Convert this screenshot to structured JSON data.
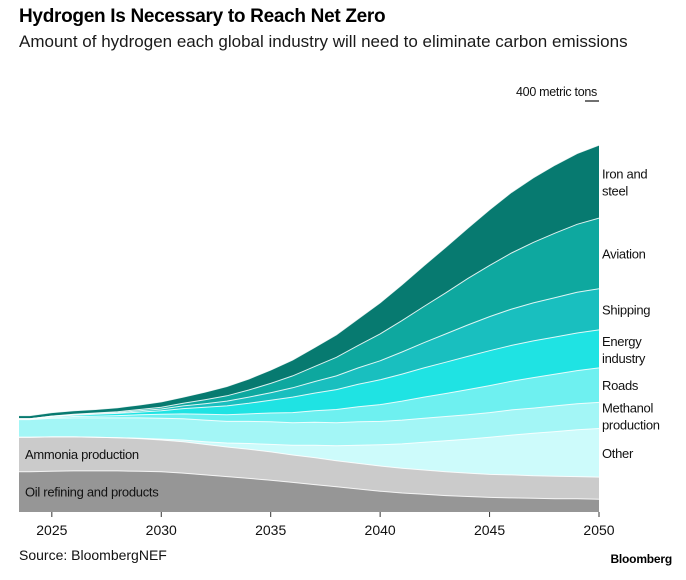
{
  "title": "Hydrogen Is Necessary to Reach Net Zero",
  "subtitle": "Amount of hydrogen each global industry will need to eliminate carbon emissions",
  "source": "Source: BloombergNEF",
  "brand": "Bloomberg",
  "chart_data": {
    "type": "area",
    "stacked": true,
    "title": "Hydrogen Is Necessary to Reach Net Zero",
    "subtitle": "Amount of hydrogen each global industry will need to eliminate carbon emissions",
    "scale_label": "400 metric tons",
    "xlim": [
      2023.5,
      2050
    ],
    "ylim": [
      0,
      1000
    ],
    "x_ticks": [
      2025,
      2030,
      2035,
      2040,
      2045,
      2050
    ],
    "x": [
      2023.5,
      2024,
      2025,
      2026,
      2027,
      2028,
      2029,
      2030,
      2031,
      2032,
      2033,
      2034,
      2035,
      2036,
      2037,
      2038,
      2039,
      2040,
      2041,
      2042,
      2043,
      2044,
      2045,
      2046,
      2047,
      2048,
      2049,
      2050
    ],
    "series": [
      {
        "name": "Oil refining and products",
        "color": "#969696",
        "values": [
          91,
          91,
          92,
          93,
          93,
          93,
          92,
          91,
          88,
          84,
          80,
          76,
          72,
          67,
          62,
          57,
          52,
          47,
          43,
          40,
          37,
          35,
          33,
          32,
          31,
          30,
          30,
          29
        ]
      },
      {
        "name": "Ammonia production",
        "color": "#cbcbcb",
        "values": [
          78,
          78,
          78,
          77,
          76,
          75,
          74,
          72,
          71,
          69,
          67,
          66,
          64,
          62,
          61,
          59,
          58,
          57,
          56,
          55,
          54,
          53,
          52,
          52,
          51,
          51,
          50,
          50
        ]
      },
      {
        "name": "Other",
        "color": "#cdfbfb",
        "values": [
          0,
          0,
          0,
          0,
          0,
          0,
          1,
          2,
          4,
          6,
          9,
          13,
          17,
          22,
          28,
          34,
          41,
          48,
          55,
          63,
          70,
          77,
          84,
          90,
          96,
          101,
          106,
          110
        ]
      },
      {
        "name": "Methanol production",
        "color": "#a3f6f6",
        "values": [
          40,
          40,
          42,
          43,
          44,
          45,
          46,
          47,
          48,
          49,
          49,
          50,
          51,
          51,
          52,
          52,
          53,
          53,
          54,
          54,
          55,
          55,
          56,
          57,
          57,
          58,
          59,
          59
        ]
      },
      {
        "name": "Roads",
        "color": "#6ef0f0",
        "values": [
          1,
          1,
          2,
          3,
          4,
          5,
          7,
          9,
          11,
          13,
          15,
          17,
          20,
          23,
          26,
          30,
          34,
          38,
          43,
          48,
          52,
          57,
          61,
          65,
          69,
          72,
          75,
          78
        ]
      },
      {
        "name": "Energy industry",
        "color": "#1fe3e3",
        "values": [
          1,
          1,
          2,
          3,
          4,
          5,
          6,
          8,
          12,
          16,
          20,
          24,
          29,
          35,
          40,
          45,
          51,
          56,
          61,
          66,
          71,
          75,
          79,
          81,
          83,
          84,
          85,
          86
        ]
      },
      {
        "name": "Shipping",
        "color": "#19bfbf",
        "values": [
          0,
          0,
          1,
          1,
          2,
          2,
          3,
          4,
          6,
          8,
          11,
          14,
          17,
          21,
          26,
          31,
          37,
          43,
          50,
          57,
          64,
          71,
          77,
          82,
          86,
          89,
          92,
          93
        ]
      },
      {
        "name": "Aviation",
        "color": "#0ea89f",
        "values": [
          0,
          0,
          0,
          1,
          1,
          2,
          3,
          4,
          6,
          9,
          12,
          16,
          21,
          27,
          34,
          42,
          51,
          61,
          71,
          82,
          93,
          105,
          116,
          127,
          137,
          146,
          154,
          160
        ]
      },
      {
        "name": "Iron and steel",
        "color": "#077a70",
        "values": [
          7,
          7,
          8,
          8,
          8,
          9,
          10,
          12,
          14,
          17,
          21,
          25,
          30,
          36,
          43,
          51,
          60,
          70,
          81,
          92,
          103,
          114,
          126,
          137,
          146,
          154,
          160,
          165
        ]
      }
    ],
    "grid": false,
    "legend": "direct labels"
  }
}
